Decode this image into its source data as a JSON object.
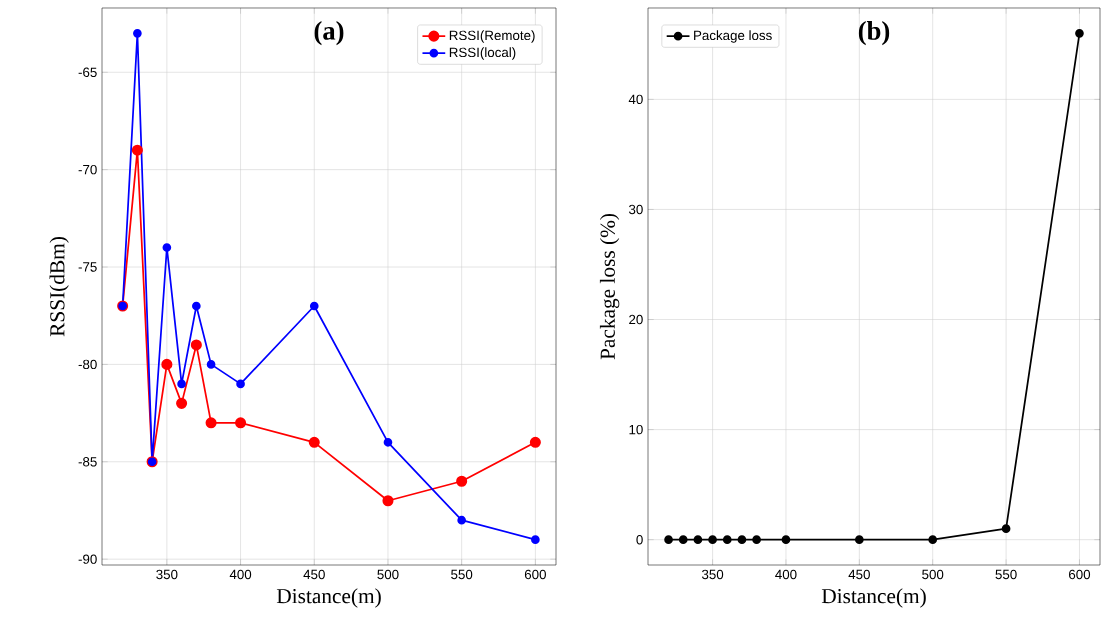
{
  "chart_data": [
    {
      "type": "line",
      "xlabel": "Distance(m)",
      "ylabel": "RSSI(dBm)",
      "annotations": [
        "(a)"
      ],
      "x": [
        320,
        330,
        340,
        350,
        360,
        370,
        380,
        400,
        450,
        500,
        550,
        600
      ],
      "series": [
        {
          "name": "RSSI(Remote)",
          "color": "#ff0000",
          "values": [
            -77,
            -69,
            -85,
            -80,
            -82,
            -79,
            -83,
            -83,
            -84,
            -87,
            -86,
            -84
          ]
        },
        {
          "name": "RSSI(local)",
          "color": "#0000ff",
          "values": [
            -77,
            -63,
            -85,
            -74,
            -81,
            -77,
            -80,
            -81,
            -77,
            -84,
            -88,
            -89
          ]
        }
      ],
      "xlim": [
        306,
        614
      ],
      "ylim": [
        -90.3,
        -61.7
      ],
      "xticks": [
        350,
        400,
        450,
        500,
        550,
        600
      ],
      "yticks": [
        -90,
        -85,
        -80,
        -75,
        -70,
        -65
      ],
      "grid": true,
      "legend": "top right",
      "marker": "circle",
      "line_style": "solid"
    },
    {
      "type": "line",
      "xlabel": "Distance(m)",
      "ylabel": "Package loss (%)",
      "annotations": [
        "(b)"
      ],
      "x": [
        320,
        330,
        340,
        350,
        360,
        370,
        380,
        400,
        450,
        500,
        550,
        600
      ],
      "series": [
        {
          "name": "Package loss",
          "color": "#000000",
          "values": [
            0,
            0,
            0,
            0,
            0,
            0,
            0,
            0,
            0,
            0,
            1,
            46
          ]
        }
      ],
      "xlim": [
        306,
        614
      ],
      "ylim": [
        -2.3,
        48.3
      ],
      "xticks": [
        350,
        400,
        450,
        500,
        550,
        600
      ],
      "yticks": [
        0,
        10,
        20,
        30,
        40
      ],
      "grid": true,
      "legend": "top left",
      "marker": "circle",
      "line_style": "solid"
    }
  ]
}
